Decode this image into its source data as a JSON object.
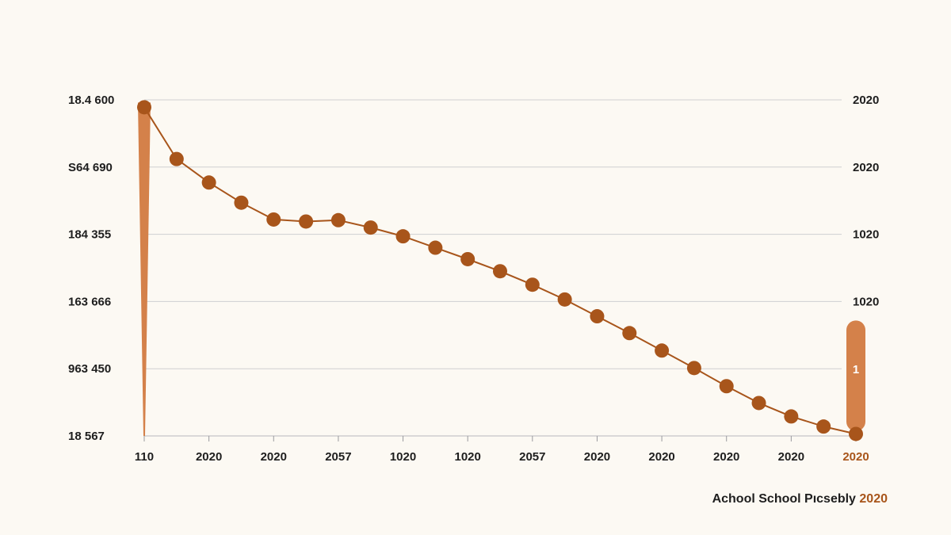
{
  "chart_data": {
    "type": "line",
    "title": "",
    "xlabel": "",
    "ylabel": "",
    "y_tick_labels_left": [
      "18 567",
      "963 450",
      "163 666",
      "184 355",
      "S64 690",
      "18.4 600"
    ],
    "y_tick_labels_right": [
      "1",
      "1020",
      "1020",
      "2020",
      "2020"
    ],
    "x_tick_labels": [
      "110",
      "2020",
      "2020",
      "2057",
      "1020",
      "1020",
      "2057",
      "2020",
      "2020",
      "2020",
      "2020",
      "2020"
    ],
    "x_tick_highlight_index": 11,
    "ylim": [
      0,
      5
    ],
    "grid": true,
    "series": [
      {
        "color": "#a8551b",
        "x": [
          0,
          0.5,
          1,
          1.5,
          2,
          2.5,
          3,
          3.5,
          4,
          4.5,
          5,
          5.5,
          6,
          6.5,
          7,
          7.5,
          8,
          8.5,
          9,
          9.5,
          10,
          10.5,
          11
        ],
        "values": [
          4.89,
          4.12,
          3.77,
          3.47,
          3.22,
          3.19,
          3.21,
          3.1,
          2.97,
          2.8,
          2.63,
          2.45,
          2.25,
          2.03,
          1.78,
          1.53,
          1.27,
          1.01,
          0.74,
          0.49,
          0.29,
          0.14,
          0.03
        ]
      }
    ],
    "spike": {
      "x": 0,
      "from": 0,
      "to": 4.96,
      "color": "#d4814a"
    },
    "end_marker": {
      "x": 11,
      "from": 0,
      "to": 1.6,
      "label": "1",
      "color": "#d4814a"
    }
  },
  "caption": {
    "text": "Achool School Pıcsebly ",
    "accent": "2020"
  }
}
